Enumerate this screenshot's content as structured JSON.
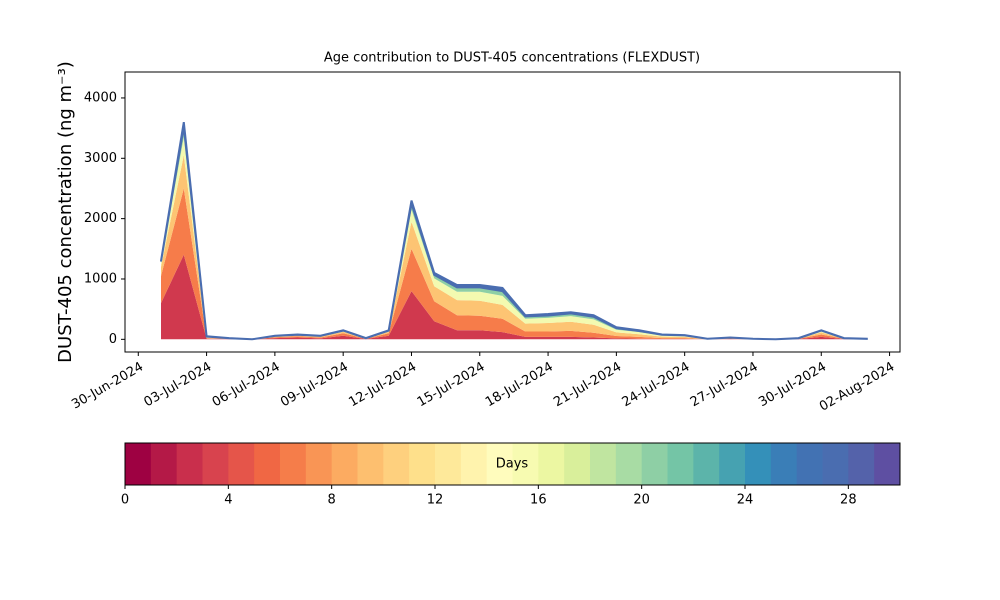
{
  "chart_data": {
    "type": "stacked-area",
    "title": "Age contribution to DUST-405 concentrations (FLEXDUST)",
    "ylabel": "DUST-405 concentration (ng m⁻³)",
    "x": [
      "2024-07-01",
      "2024-07-02",
      "2024-07-03",
      "2024-07-04",
      "2024-07-05",
      "2024-07-06",
      "2024-07-07",
      "2024-07-08",
      "2024-07-09",
      "2024-07-10",
      "2024-07-11",
      "2024-07-12",
      "2024-07-13",
      "2024-07-14",
      "2024-07-15",
      "2024-07-16",
      "2024-07-17",
      "2024-07-18",
      "2024-07-19",
      "2024-07-20",
      "2024-07-21",
      "2024-07-22",
      "2024-07-23",
      "2024-07-24",
      "2024-07-25",
      "2024-07-26",
      "2024-07-27",
      "2024-07-28",
      "2024-07-29",
      "2024-07-30",
      "2024-07-31",
      "2024-08-01"
    ],
    "series": [
      {
        "color": "#d0394e",
        "values": [
          600,
          1400,
          10,
          5,
          0,
          20,
          30,
          15,
          60,
          5,
          60,
          800,
          300,
          150,
          150,
          120,
          40,
          40,
          40,
          30,
          15,
          10,
          5,
          5,
          0,
          5,
          0,
          0,
          5,
          40,
          5,
          0
        ]
      },
      {
        "color": "#f67c4a",
        "values": [
          450,
          1100,
          10,
          5,
          0,
          15,
          20,
          15,
          40,
          5,
          40,
          700,
          330,
          250,
          240,
          220,
          90,
          90,
          100,
          80,
          40,
          30,
          15,
          15,
          2,
          8,
          2,
          0,
          5,
          40,
          5,
          2
        ]
      },
      {
        "color": "#fdc473",
        "values": [
          150,
          550,
          10,
          5,
          0,
          10,
          15,
          15,
          25,
          5,
          25,
          450,
          250,
          250,
          250,
          230,
          130,
          140,
          150,
          130,
          60,
          45,
          25,
          20,
          3,
          7,
          3,
          0,
          4,
          35,
          4,
          3
        ]
      },
      {
        "color": "#f3fab0",
        "values": [
          60,
          300,
          10,
          3,
          0,
          8,
          8,
          8,
          12,
          3,
          12,
          200,
          130,
          140,
          150,
          150,
          80,
          85,
          95,
          90,
          45,
          35,
          20,
          15,
          3,
          5,
          3,
          0,
          3,
          20,
          3,
          2
        ]
      },
      {
        "color": "#8ecfa5",
        "values": [
          30,
          170,
          5,
          1,
          0,
          4,
          4,
          4,
          8,
          1,
          8,
          100,
          60,
          70,
          70,
          80,
          40,
          40,
          45,
          45,
          25,
          18,
          10,
          10,
          1,
          3,
          1,
          0,
          2,
          10,
          2,
          2
        ]
      },
      {
        "color": "#4a6db0",
        "values": [
          10,
          80,
          5,
          1,
          0,
          3,
          3,
          3,
          5,
          1,
          5,
          50,
          30,
          40,
          40,
          50,
          20,
          25,
          20,
          25,
          15,
          12,
          5,
          5,
          1,
          2,
          1,
          0,
          1,
          5,
          1,
          1
        ]
      }
    ],
    "xlim": [
      "2024-06-29T10:00",
      "2024-08-02T11:00"
    ],
    "xticks": [
      {
        "value": "2024-06-30",
        "label": "30-Jun-2024"
      },
      {
        "value": "2024-07-03",
        "label": "03-Jul-2024"
      },
      {
        "value": "2024-07-06",
        "label": "06-Jul-2024"
      },
      {
        "value": "2024-07-09",
        "label": "09-Jul-2024"
      },
      {
        "value": "2024-07-12",
        "label": "12-Jul-2024"
      },
      {
        "value": "2024-07-15",
        "label": "15-Jul-2024"
      },
      {
        "value": "2024-07-18",
        "label": "18-Jul-2024"
      },
      {
        "value": "2024-07-21",
        "label": "21-Jul-2024"
      },
      {
        "value": "2024-07-24",
        "label": "24-Jul-2024"
      },
      {
        "value": "2024-07-27",
        "label": "27-Jul-2024"
      },
      {
        "value": "2024-07-30",
        "label": "30-Jul-2024"
      },
      {
        "value": "2024-08-02",
        "label": "02-Aug-2024"
      }
    ],
    "ylim": [
      -210,
      4430
    ],
    "yticks": [
      0,
      1000,
      2000,
      3000,
      4000
    ],
    "colorbar": {
      "label": "Days",
      "lim": [
        0,
        30
      ],
      "ticks": [
        0,
        4,
        8,
        12,
        16,
        20,
        24,
        28
      ],
      "colors": [
        "#9e0142",
        "#b41947",
        "#c92f4c",
        "#d8434e",
        "#e5554a",
        "#f06744",
        "#f57d4a",
        "#f99555",
        "#fcab61",
        "#fdbf6f",
        "#fed07e",
        "#fee08b",
        "#fee99a",
        "#fff3ad",
        "#fffcbd",
        "#f7fbb1",
        "#ecf7a2",
        "#d9ef9b",
        "#c0e5a0",
        "#a8dca4",
        "#8ecfa5",
        "#74c5a6",
        "#5cb4aa",
        "#46a2b1",
        "#3490b9",
        "#3a7eb7",
        "#4272b3",
        "#4a6db0",
        "#5462aa",
        "#5e4fa2"
      ]
    }
  }
}
